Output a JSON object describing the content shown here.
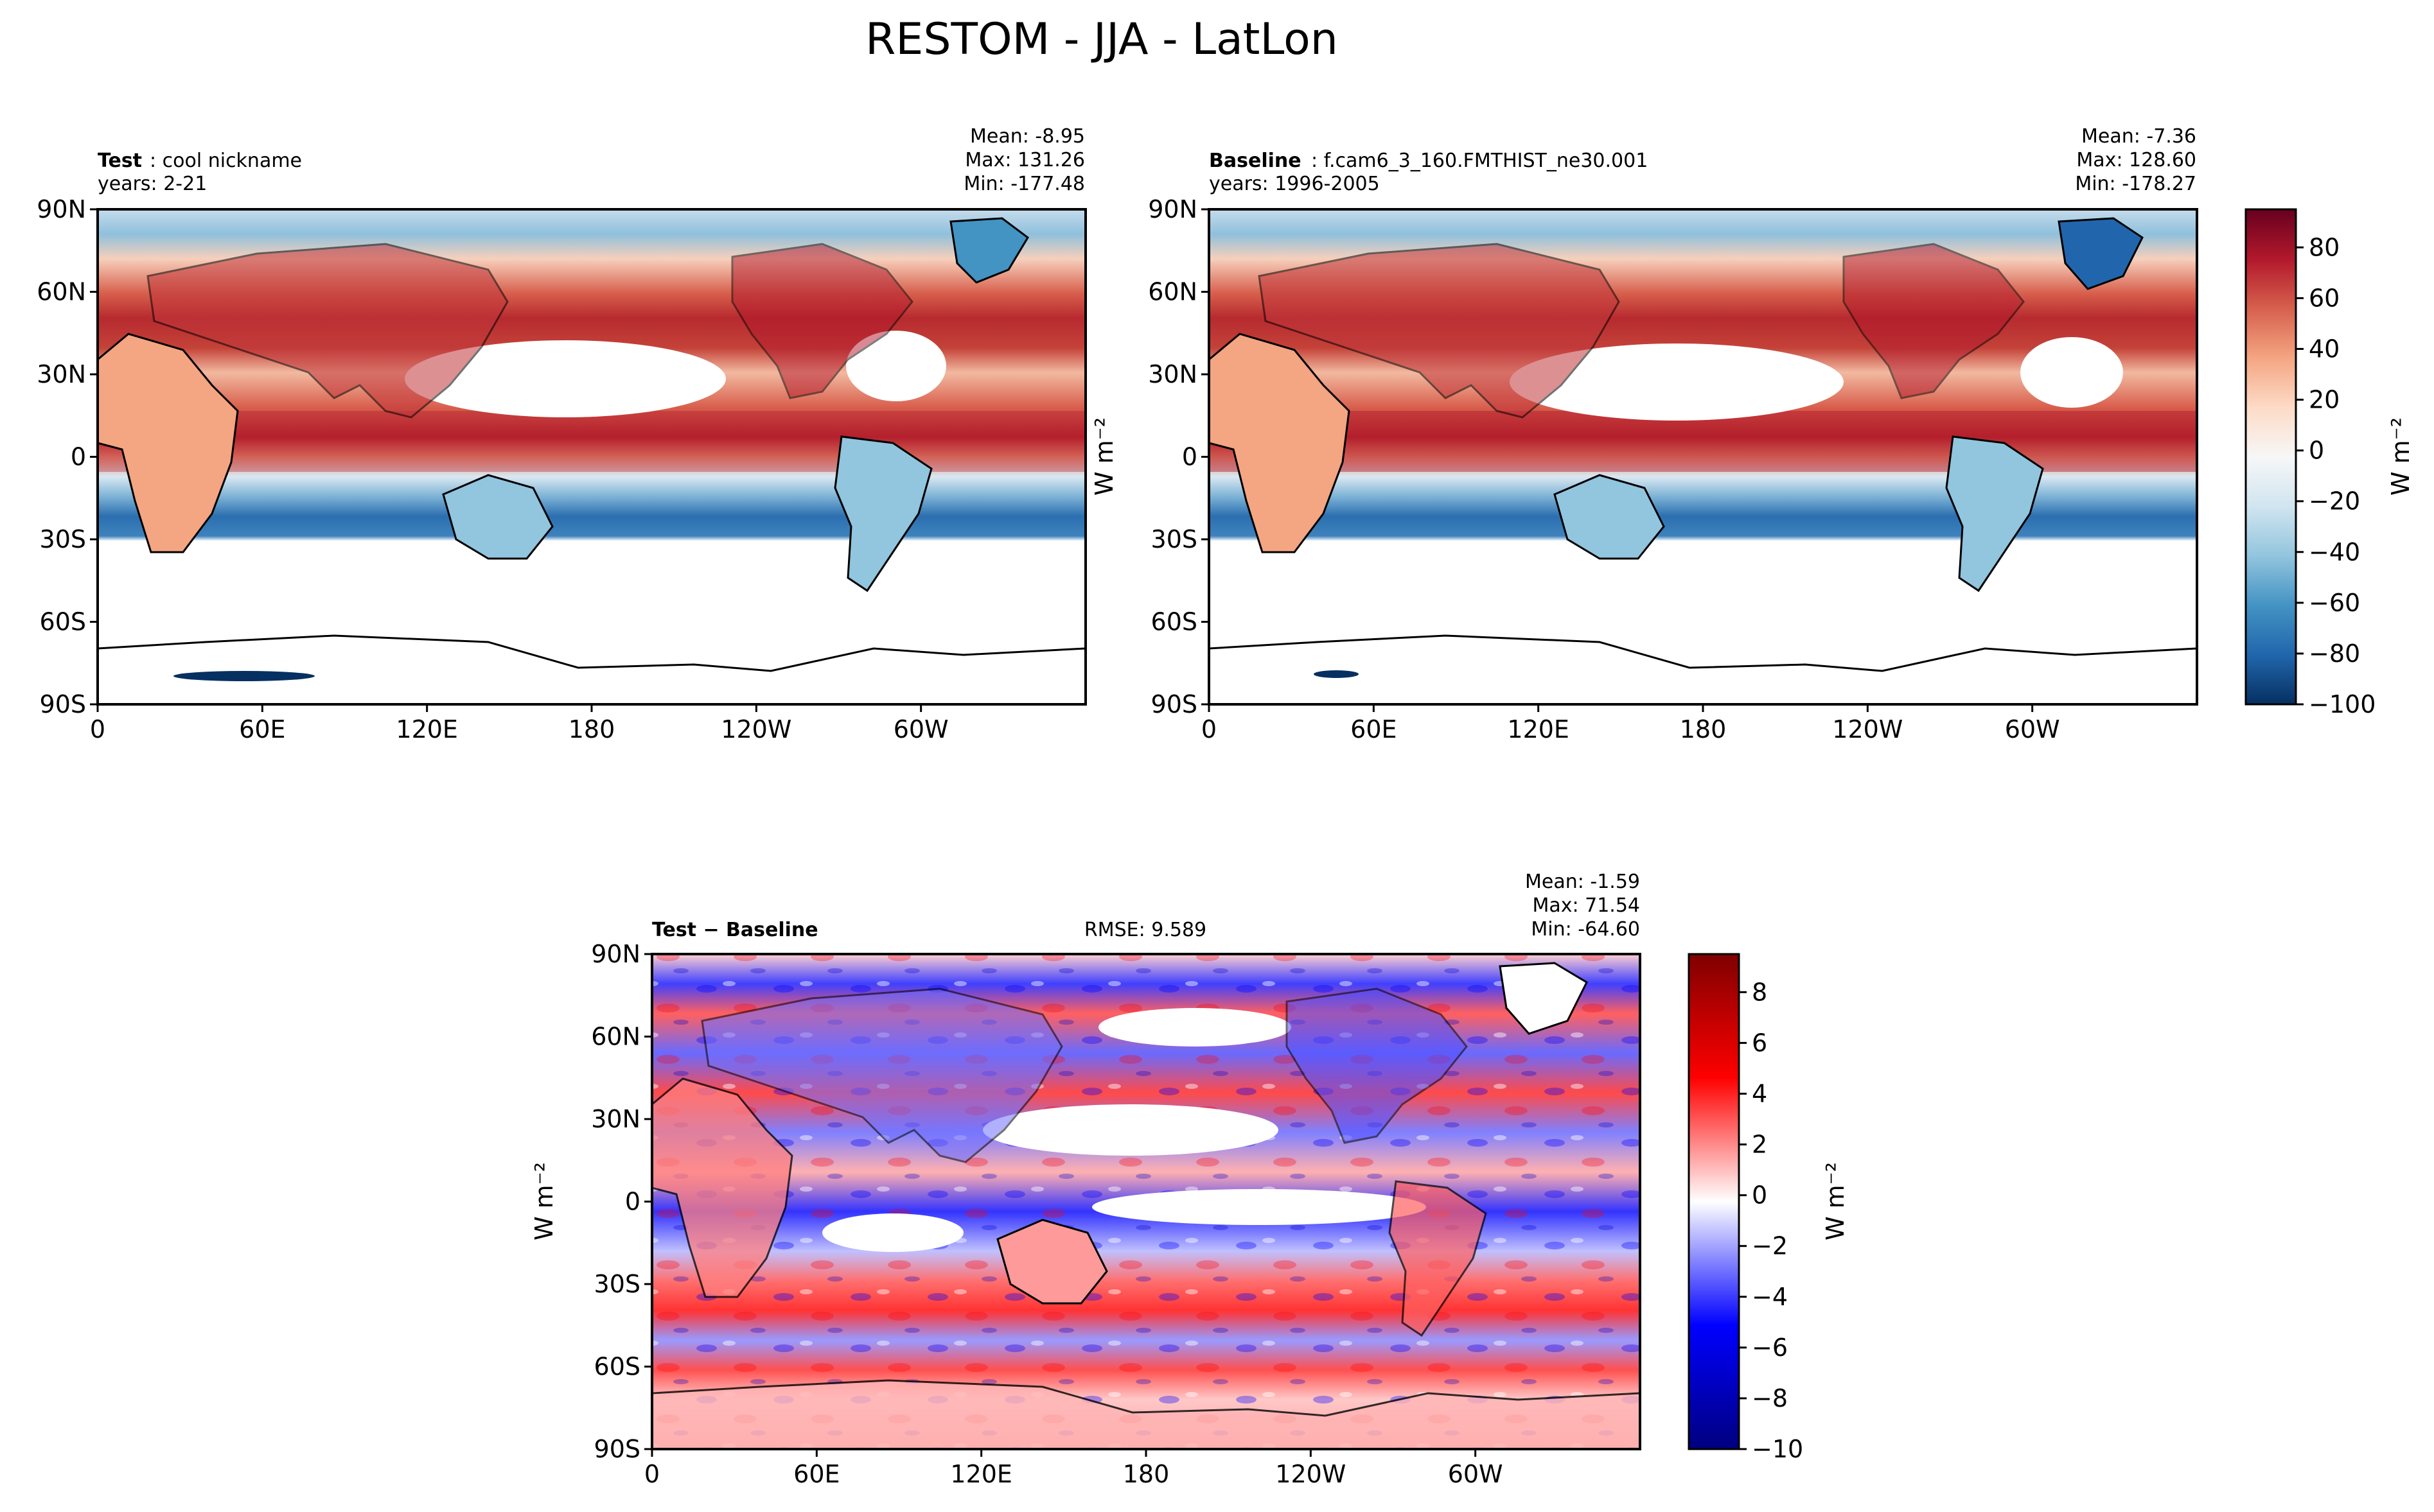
{
  "figure_title": "RESTOM - JJA - LatLon",
  "colors": {
    "rdbu": [
      "#053061",
      "#2166ac",
      "#4393c3",
      "#92c5de",
      "#d1e5f0",
      "#f7f7f7",
      "#fddbc7",
      "#f4a582",
      "#d6604d",
      "#b2182b",
      "#67001f"
    ],
    "bwr": [
      "#00007f",
      "#0000ff",
      "#ffffff",
      "#ff0000",
      "#7f0000"
    ],
    "land_outline": "#000000",
    "masked": "#ffffff"
  },
  "chart_data": [
    {
      "id": "test",
      "type": "heatmap",
      "projection": "lat-lon",
      "label_bold": "Test",
      "label_rest": ": cool nickname",
      "years": "years: 2-21",
      "stats": [
        "Mean: -8.95",
        "Max: 131.26",
        "Min: -177.48"
      ],
      "x_ticks": [
        "0",
        "60E",
        "120E",
        "180",
        "120W",
        "60W"
      ],
      "y_ticks": [
        "90N",
        "60N",
        "30N",
        "0",
        "30S",
        "60S",
        "90S"
      ],
      "xlim": [
        0,
        360
      ],
      "ylim": [
        -90,
        90
      ],
      "colormap": "RdBu_r"
    },
    {
      "id": "baseline",
      "type": "heatmap",
      "projection": "lat-lon",
      "label_bold": "Baseline",
      "label_rest": ": f.cam6_3_160.FMTHIST_ne30.001",
      "years": "years: 1996-2005",
      "stats": [
        "Mean: -7.36",
        "Max: 128.60",
        "Min: -178.27"
      ],
      "x_ticks": [
        "0",
        "60E",
        "120E",
        "180",
        "120W",
        "60W"
      ],
      "y_ticks": [
        "90N",
        "60N",
        "30N",
        "0",
        "30S",
        "60S",
        "90S"
      ],
      "xlim": [
        0,
        360
      ],
      "ylim": [
        -90,
        90
      ],
      "colormap": "RdBu_r",
      "ylabel": "W m⁻²"
    },
    {
      "id": "diff",
      "type": "heatmap",
      "projection": "lat-lon",
      "label_bold": "Test − Baseline",
      "rmse": "RMSE: 9.589",
      "stats": [
        "Mean: -1.59",
        "Max: 71.54",
        "Min: -64.60"
      ],
      "x_ticks": [
        "0",
        "60E",
        "120E",
        "180",
        "120W",
        "60W"
      ],
      "y_ticks": [
        "90N",
        "60N",
        "30N",
        "0",
        "30S",
        "60S",
        "90S"
      ],
      "xlim": [
        0,
        360
      ],
      "ylim": [
        -90,
        90
      ],
      "colormap": "bwr",
      "ylabel": "W m⁻²"
    }
  ],
  "colorbars": [
    {
      "id": "cbar-top",
      "range": [
        -100,
        95
      ],
      "tick_values": [
        80,
        60,
        40,
        20,
        0,
        -20,
        -40,
        -60,
        -80,
        -100
      ],
      "tick_labels": [
        "80",
        "60",
        "40",
        "20",
        "0",
        "−20",
        "−40",
        "−60",
        "−80",
        "−100"
      ],
      "label": "W m⁻²"
    },
    {
      "id": "cbar-diff",
      "range": [
        -10,
        9.5
      ],
      "tick_values": [
        8,
        6,
        4,
        2,
        0,
        -2,
        -4,
        -6,
        -8,
        -10
      ],
      "tick_labels": [
        "8",
        "6",
        "4",
        "2",
        "0",
        "−2",
        "−4",
        "−6",
        "−8",
        "−10"
      ],
      "label": "W m⁻²"
    }
  ]
}
